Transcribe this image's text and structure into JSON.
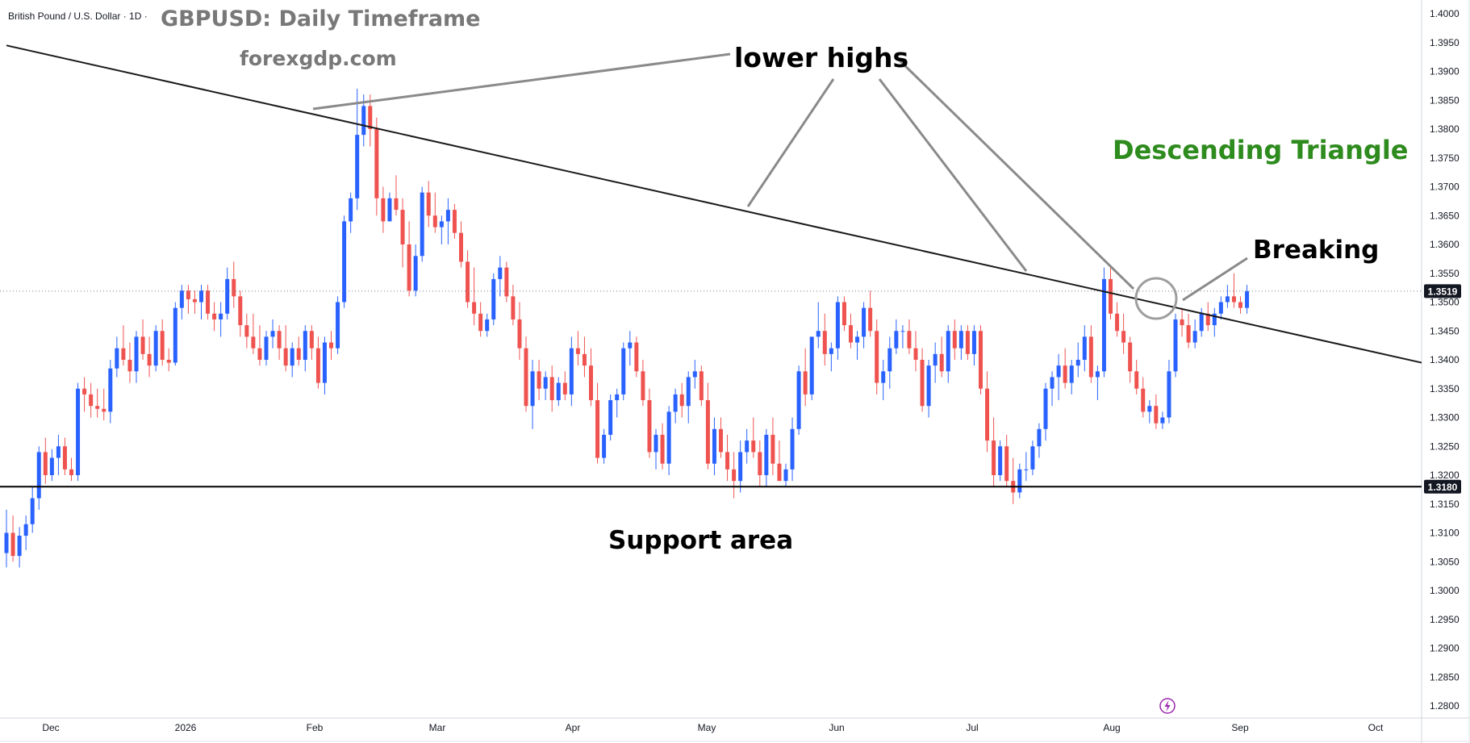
{
  "header": {
    "symbol_line": "British Pound / U.S. Dollar · 1D ·",
    "title": "GBPUSD: Daily Timeframe",
    "subtitle": "forexgdp.com"
  },
  "annotations": {
    "lower_highs": "lower highs",
    "pattern": "Descending Triangle",
    "breaking": "Breaking",
    "support": "Support area"
  },
  "price_tags": {
    "current": "1.3519",
    "support": "1.3180"
  },
  "colors": {
    "bull": "#2962ff",
    "bear": "#ef5350",
    "pattern_text": "#2e8b1e",
    "tag_bg": "#131722",
    "lightning": "#9c27b0"
  },
  "chart_data": {
    "type": "candlestick",
    "timeframe": "1D",
    "y_ticks": [
      "1.4000",
      "1.3950",
      "1.3900",
      "1.3850",
      "1.3800",
      "1.3750",
      "1.3700",
      "1.3650",
      "1.3600",
      "1.3550",
      "1.3500",
      "1.3450",
      "1.3400",
      "1.3350",
      "1.3300",
      "1.3250",
      "1.3200",
      "1.3150",
      "1.3100",
      "1.3050",
      "1.3000",
      "1.2950",
      "1.2900",
      "1.2850",
      "1.2800"
    ],
    "ylim": [
      1.2785,
      1.4015
    ],
    "x_months": [
      "Dec",
      "2026",
      "Feb",
      "Mar",
      "Apr",
      "May",
      "Jun",
      "Jul",
      "Aug",
      "Sep",
      "Oct"
    ],
    "support_level": 1.318,
    "last_price": 1.3519,
    "trendline": {
      "from_price": 1.3945,
      "to_price": 1.3395
    },
    "ohlc": [
      [
        1.3065,
        1.314,
        1.304,
        1.31
      ],
      [
        1.31,
        1.313,
        1.305,
        1.306
      ],
      [
        1.306,
        1.311,
        1.304,
        1.3095
      ],
      [
        1.3095,
        1.313,
        1.307,
        1.3115
      ],
      [
        1.3115,
        1.318,
        1.31,
        1.316
      ],
      [
        1.316,
        1.325,
        1.314,
        1.324
      ],
      [
        1.324,
        1.3265,
        1.3185,
        1.32
      ],
      [
        1.32,
        1.3245,
        1.319,
        1.323
      ],
      [
        1.323,
        1.327,
        1.32,
        1.325
      ],
      [
        1.325,
        1.3265,
        1.32,
        1.321
      ],
      [
        1.321,
        1.323,
        1.319,
        1.32
      ],
      [
        1.32,
        1.336,
        1.319,
        1.335
      ],
      [
        1.335,
        1.337,
        1.331,
        1.334
      ],
      [
        1.334,
        1.336,
        1.33,
        1.332
      ],
      [
        1.332,
        1.335,
        1.33,
        1.3315
      ],
      [
        1.3315,
        1.335,
        1.3295,
        1.331
      ],
      [
        1.331,
        1.34,
        1.329,
        1.3385
      ],
      [
        1.3385,
        1.344,
        1.337,
        1.342
      ],
      [
        1.342,
        1.346,
        1.339,
        1.34
      ],
      [
        1.34,
        1.343,
        1.336,
        1.338
      ],
      [
        1.338,
        1.345,
        1.336,
        1.344
      ],
      [
        1.344,
        1.347,
        1.34,
        1.341
      ],
      [
        1.341,
        1.344,
        1.337,
        1.339
      ],
      [
        1.339,
        1.346,
        1.338,
        1.345
      ],
      [
        1.345,
        1.347,
        1.339,
        1.34
      ],
      [
        1.34,
        1.342,
        1.338,
        1.3395
      ],
      [
        1.3395,
        1.35,
        1.339,
        1.349
      ],
      [
        1.349,
        1.353,
        1.347,
        1.352
      ],
      [
        1.352,
        1.353,
        1.348,
        1.3505
      ],
      [
        1.3505,
        1.352,
        1.348,
        1.35
      ],
      [
        1.35,
        1.353,
        1.347,
        1.352
      ],
      [
        1.352,
        1.353,
        1.347,
        1.348
      ],
      [
        1.348,
        1.35,
        1.345,
        1.347
      ],
      [
        1.347,
        1.35,
        1.344,
        1.348
      ],
      [
        1.348,
        1.356,
        1.347,
        1.354
      ],
      [
        1.354,
        1.357,
        1.349,
        1.351
      ],
      [
        1.351,
        1.352,
        1.344,
        1.346
      ],
      [
        1.346,
        1.348,
        1.342,
        1.344
      ],
      [
        1.344,
        1.348,
        1.341,
        1.342
      ],
      [
        1.342,
        1.346,
        1.339,
        1.34
      ],
      [
        1.34,
        1.345,
        1.339,
        1.344
      ],
      [
        1.344,
        1.347,
        1.342,
        1.345
      ],
      [
        1.345,
        1.346,
        1.34,
        1.342
      ],
      [
        1.342,
        1.346,
        1.338,
        1.339
      ],
      [
        1.339,
        1.343,
        1.337,
        1.342
      ],
      [
        1.342,
        1.344,
        1.339,
        1.34
      ],
      [
        1.34,
        1.346,
        1.338,
        1.345
      ],
      [
        1.345,
        1.346,
        1.34,
        1.342
      ],
      [
        1.342,
        1.344,
        1.335,
        1.336
      ],
      [
        1.336,
        1.344,
        1.334,
        1.343
      ],
      [
        1.343,
        1.345,
        1.34,
        1.342
      ],
      [
        1.342,
        1.351,
        1.341,
        1.35
      ],
      [
        1.35,
        1.365,
        1.349,
        1.364
      ],
      [
        1.364,
        1.369,
        1.362,
        1.368
      ],
      [
        1.368,
        1.387,
        1.366,
        1.379
      ],
      [
        1.379,
        1.386,
        1.377,
        1.384
      ],
      [
        1.384,
        1.386,
        1.377,
        1.38
      ],
      [
        1.38,
        1.382,
        1.365,
        1.368
      ],
      [
        1.368,
        1.37,
        1.362,
        1.364
      ],
      [
        1.364,
        1.369,
        1.364,
        1.368
      ],
      [
        1.368,
        1.372,
        1.365,
        1.366
      ],
      [
        1.366,
        1.368,
        1.356,
        1.36
      ],
      [
        1.36,
        1.364,
        1.351,
        1.352
      ],
      [
        1.352,
        1.36,
        1.351,
        1.358
      ],
      [
        1.358,
        1.37,
        1.357,
        1.369
      ],
      [
        1.369,
        1.371,
        1.363,
        1.365
      ],
      [
        1.365,
        1.369,
        1.362,
        1.363
      ],
      [
        1.363,
        1.365,
        1.36,
        1.364
      ],
      [
        1.364,
        1.368,
        1.36,
        1.366
      ],
      [
        1.366,
        1.367,
        1.361,
        1.362
      ],
      [
        1.362,
        1.364,
        1.356,
        1.357
      ],
      [
        1.357,
        1.359,
        1.349,
        1.35
      ],
      [
        1.35,
        1.356,
        1.346,
        1.348
      ],
      [
        1.348,
        1.35,
        1.344,
        1.345
      ],
      [
        1.345,
        1.348,
        1.344,
        1.347
      ],
      [
        1.347,
        1.355,
        1.346,
        1.354
      ],
      [
        1.354,
        1.358,
        1.351,
        1.356
      ],
      [
        1.356,
        1.357,
        1.35,
        1.351
      ],
      [
        1.351,
        1.353,
        1.346,
        1.347
      ],
      [
        1.347,
        1.35,
        1.34,
        1.342
      ],
      [
        1.342,
        1.344,
        1.331,
        1.332
      ],
      [
        1.332,
        1.34,
        1.328,
        1.338
      ],
      [
        1.338,
        1.34,
        1.333,
        1.335
      ],
      [
        1.335,
        1.338,
        1.333,
        1.337
      ],
      [
        1.337,
        1.339,
        1.331,
        1.333
      ],
      [
        1.333,
        1.337,
        1.332,
        1.336
      ],
      [
        1.336,
        1.338,
        1.333,
        1.334
      ],
      [
        1.334,
        1.344,
        1.332,
        1.342
      ],
      [
        1.342,
        1.345,
        1.339,
        1.341
      ],
      [
        1.341,
        1.344,
        1.337,
        1.339
      ],
      [
        1.339,
        1.342,
        1.332,
        1.333
      ],
      [
        1.333,
        1.336,
        1.322,
        1.323
      ],
      [
        1.323,
        1.328,
        1.322,
        1.327
      ],
      [
        1.327,
        1.334,
        1.326,
        1.333
      ],
      [
        1.333,
        1.335,
        1.33,
        1.334
      ],
      [
        1.334,
        1.343,
        1.333,
        1.342
      ],
      [
        1.342,
        1.345,
        1.339,
        1.343
      ],
      [
        1.343,
        1.344,
        1.337,
        1.338
      ],
      [
        1.338,
        1.34,
        1.332,
        1.333
      ],
      [
        1.333,
        1.335,
        1.323,
        1.324
      ],
      [
        1.324,
        1.328,
        1.321,
        1.327
      ],
      [
        1.327,
        1.329,
        1.321,
        1.322
      ],
      [
        1.322,
        1.332,
        1.32,
        1.331
      ],
      [
        1.331,
        1.335,
        1.329,
        1.334
      ],
      [
        1.334,
        1.336,
        1.33,
        1.332
      ],
      [
        1.332,
        1.338,
        1.329,
        1.337
      ],
      [
        1.337,
        1.34,
        1.335,
        1.338
      ],
      [
        1.338,
        1.339,
        1.332,
        1.333
      ],
      [
        1.333,
        1.336,
        1.321,
        1.322
      ],
      [
        1.322,
        1.33,
        1.32,
        1.328
      ],
      [
        1.328,
        1.33,
        1.323,
        1.324
      ],
      [
        1.324,
        1.327,
        1.319,
        1.321
      ],
      [
        1.321,
        1.324,
        1.316,
        1.319
      ],
      [
        1.319,
        1.326,
        1.317,
        1.324
      ],
      [
        1.324,
        1.328,
        1.322,
        1.326
      ],
      [
        1.326,
        1.33,
        1.323,
        1.324
      ],
      [
        1.324,
        1.326,
        1.318,
        1.32
      ],
      [
        1.32,
        1.328,
        1.318,
        1.327
      ],
      [
        1.327,
        1.33,
        1.32,
        1.322
      ],
      [
        1.322,
        1.326,
        1.319,
        1.319
      ],
      [
        1.319,
        1.322,
        1.318,
        1.321
      ],
      [
        1.321,
        1.33,
        1.319,
        1.328
      ],
      [
        1.328,
        1.339,
        1.327,
        1.338
      ],
      [
        1.338,
        1.342,
        1.332,
        1.334
      ],
      [
        1.334,
        1.344,
        1.333,
        1.344
      ],
      [
        1.344,
        1.35,
        1.342,
        1.345
      ],
      [
        1.345,
        1.348,
        1.339,
        1.341
      ],
      [
        1.341,
        1.343,
        1.338,
        1.342
      ],
      [
        1.342,
        1.351,
        1.34,
        1.35
      ],
      [
        1.35,
        1.351,
        1.345,
        1.346
      ],
      [
        1.346,
        1.348,
        1.342,
        1.343
      ],
      [
        1.343,
        1.345,
        1.34,
        1.344
      ],
      [
        1.344,
        1.35,
        1.342,
        1.349
      ],
      [
        1.349,
        1.352,
        1.344,
        1.345
      ],
      [
        1.345,
        1.347,
        1.334,
        1.336
      ],
      [
        1.336,
        1.34,
        1.333,
        1.338
      ],
      [
        1.338,
        1.344,
        1.335,
        1.342
      ],
      [
        1.342,
        1.347,
        1.341,
        1.345
      ],
      [
        1.345,
        1.346,
        1.342,
        1.345
      ],
      [
        1.345,
        1.347,
        1.341,
        1.342
      ],
      [
        1.342,
        1.345,
        1.338,
        1.34
      ],
      [
        1.34,
        1.342,
        1.331,
        1.332
      ],
      [
        1.332,
        1.34,
        1.33,
        1.339
      ],
      [
        1.339,
        1.343,
        1.336,
        1.341
      ],
      [
        1.341,
        1.344,
        1.337,
        1.338
      ],
      [
        1.338,
        1.346,
        1.336,
        1.345
      ],
      [
        1.345,
        1.347,
        1.34,
        1.342
      ],
      [
        1.342,
        1.346,
        1.34,
        1.345
      ],
      [
        1.345,
        1.346,
        1.34,
        1.341
      ],
      [
        1.341,
        1.346,
        1.339,
        1.345
      ],
      [
        1.345,
        1.346,
        1.334,
        1.335
      ],
      [
        1.335,
        1.338,
        1.324,
        1.326
      ],
      [
        1.326,
        1.33,
        1.318,
        1.32
      ],
      [
        1.32,
        1.326,
        1.319,
        1.325
      ],
      [
        1.325,
        1.327,
        1.318,
        1.319
      ],
      [
        1.319,
        1.323,
        1.315,
        1.317
      ],
      [
        1.317,
        1.322,
        1.316,
        1.321
      ],
      [
        1.321,
        1.324,
        1.319,
        1.321
      ],
      [
        1.321,
        1.326,
        1.32,
        1.325
      ],
      [
        1.325,
        1.329,
        1.323,
        1.328
      ],
      [
        1.328,
        1.336,
        1.326,
        1.335
      ],
      [
        1.335,
        1.338,
        1.332,
        1.337
      ],
      [
        1.337,
        1.341,
        1.333,
        1.339
      ],
      [
        1.339,
        1.342,
        1.335,
        1.336
      ],
      [
        1.336,
        1.34,
        1.334,
        1.339
      ],
      [
        1.339,
        1.343,
        1.337,
        1.34
      ],
      [
        1.34,
        1.346,
        1.338,
        1.344
      ],
      [
        1.344,
        1.346,
        1.336,
        1.337
      ],
      [
        1.337,
        1.339,
        1.333,
        1.338
      ],
      [
        1.338,
        1.356,
        1.337,
        1.354
      ],
      [
        1.354,
        1.356,
        1.347,
        1.348
      ],
      [
        1.348,
        1.35,
        1.344,
        1.345
      ],
      [
        1.345,
        1.348,
        1.341,
        1.343
      ],
      [
        1.343,
        1.344,
        1.336,
        1.338
      ],
      [
        1.338,
        1.34,
        1.334,
        1.335
      ],
      [
        1.335,
        1.337,
        1.33,
        1.331
      ],
      [
        1.331,
        1.333,
        1.329,
        1.332
      ],
      [
        1.332,
        1.334,
        1.328,
        1.329
      ],
      [
        1.329,
        1.331,
        1.328,
        1.33
      ],
      [
        1.33,
        1.34,
        1.329,
        1.338
      ],
      [
        1.338,
        1.348,
        1.337,
        1.347
      ],
      [
        1.347,
        1.349,
        1.344,
        1.346
      ],
      [
        1.346,
        1.348,
        1.342,
        1.343
      ],
      [
        1.343,
        1.347,
        1.342,
        1.345
      ],
      [
        1.345,
        1.349,
        1.344,
        1.348
      ],
      [
        1.348,
        1.35,
        1.345,
        1.346
      ],
      [
        1.346,
        1.349,
        1.344,
        1.348
      ],
      [
        1.348,
        1.351,
        1.347,
        1.35
      ],
      [
        1.35,
        1.353,
        1.349,
        1.351
      ],
      [
        1.351,
        1.355,
        1.349,
        1.35
      ],
      [
        1.35,
        1.351,
        1.348,
        1.349
      ],
      [
        1.349,
        1.353,
        1.348,
        1.3519
      ]
    ]
  }
}
